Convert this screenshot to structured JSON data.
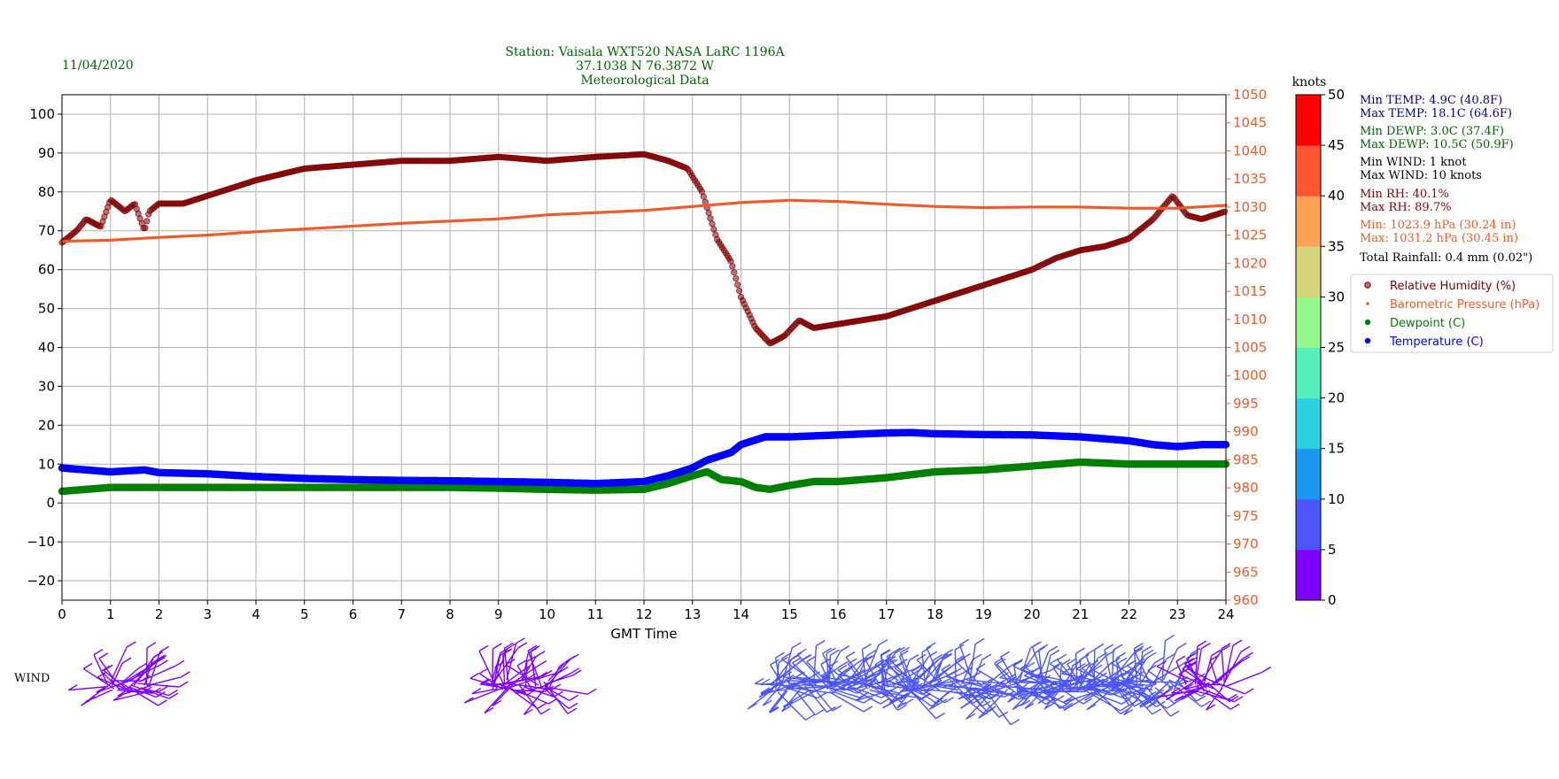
{
  "header": {
    "date": "11/04/2020",
    "title_lines": [
      "Station:  Vaisala WXT520  NASA LaRC 1196A",
      "37.1038 N 76.3872 W",
      "Meteorological Data"
    ]
  },
  "colors": {
    "title": "#006400",
    "humidity": "#800000",
    "pressure": "#f05a28",
    "dewpoint": "#008000",
    "temperature": "#0000ff",
    "grid": "#b0b0b0"
  },
  "stats": [
    {
      "text": "Min TEMP: 4.9C (40.8F)",
      "color": "#00008b"
    },
    {
      "text": "Max TEMP: 18.1C (64.6F)",
      "color": "#00008b"
    },
    {
      "text": "Min DEWP: 3.0C (37.4F)",
      "color": "#006400"
    },
    {
      "text": "Max DEWP: 10.5C (50.9F)",
      "color": "#006400"
    },
    {
      "text": "Min WIND: 1 knot",
      "color": "#000000"
    },
    {
      "text": "Max WIND: 10 knots",
      "color": "#000000"
    },
    {
      "text": "Min RH: 40.1%",
      "color": "#8b0000"
    },
    {
      "text": "Max RH: 89.7%",
      "color": "#8b0000"
    },
    {
      "text": "Min: 1023.9 hPa (30.24 in)",
      "color": "#f05a28"
    },
    {
      "text": "Max: 1031.2 hPa (30.45 in)",
      "color": "#f05a28"
    },
    {
      "text": "Total Rainfall: 0.4 mm (0.02\")",
      "color": "#000000"
    }
  ],
  "wind_label": "WIND",
  "colorbar": {
    "label": "knots",
    "ticks": [
      0,
      5,
      10,
      15,
      20,
      25,
      30,
      35,
      40,
      45,
      50
    ],
    "colors": [
      "#8000ff",
      "#4b55fa",
      "#1996f0",
      "#2ad1de",
      "#55f0be",
      "#95fa8e",
      "#d4d47a",
      "#ffa256",
      "#ff5530",
      "#ff0000"
    ]
  },
  "chart_data": {
    "type": "scatter",
    "xlabel": "GMT Time",
    "xlim": [
      0,
      24
    ],
    "xticks": [
      0,
      1,
      2,
      3,
      4,
      5,
      6,
      7,
      8,
      9,
      10,
      11,
      12,
      13,
      14,
      15,
      16,
      17,
      18,
      19,
      20,
      21,
      22,
      23,
      24
    ],
    "y_left": {
      "lim": [
        -25,
        105
      ],
      "ticks": [
        -20,
        -10,
        0,
        10,
        20,
        30,
        40,
        50,
        60,
        70,
        80,
        90,
        100
      ]
    },
    "y_right": {
      "lim": [
        960,
        1050
      ],
      "ticks": [
        960,
        965,
        970,
        975,
        980,
        985,
        990,
        995,
        1000,
        1005,
        1010,
        1015,
        1020,
        1025,
        1030,
        1035,
        1040,
        1045,
        1050
      ]
    },
    "legend_position": "right",
    "series": [
      {
        "name": "Relative Humidity (%)",
        "axis": "left",
        "x": [
          0,
          0.3,
          0.5,
          0.8,
          1,
          1.3,
          1.5,
          1.7,
          1.8,
          2,
          2.5,
          3,
          4,
          5,
          6,
          7,
          8,
          9,
          10,
          11,
          12,
          12.5,
          12.9,
          13.2,
          13.5,
          13.8,
          14,
          14.3,
          14.6,
          14.9,
          15.2,
          15.5,
          16,
          16.5,
          17,
          17.5,
          18,
          18.5,
          19,
          19.5,
          20,
          20.5,
          21,
          21.5,
          22,
          22.5,
          22.9,
          23.2,
          23.5,
          24
        ],
        "y": [
          67,
          70,
          73,
          71,
          78,
          75,
          77,
          70,
          75,
          77,
          77,
          79,
          83,
          86,
          87,
          88,
          88,
          89,
          88,
          89,
          89.7,
          88,
          86,
          80,
          68,
          62,
          53,
          45,
          41,
          43,
          47,
          45,
          46,
          47,
          48,
          50,
          52,
          54,
          56,
          58,
          60,
          63,
          65,
          66,
          68,
          73,
          79,
          74,
          73,
          75
        ]
      },
      {
        "name": "Barometric Pressure (hPa)",
        "axis": "right",
        "x": [
          0,
          1,
          2,
          3,
          4,
          5,
          6,
          7,
          8,
          9,
          10,
          11,
          12,
          13,
          14,
          15,
          16,
          17,
          18,
          19,
          20,
          21,
          22,
          23,
          24
        ],
        "y": [
          1023.9,
          1024.1,
          1024.6,
          1025,
          1025.6,
          1026.1,
          1026.6,
          1027.1,
          1027.5,
          1027.9,
          1028.6,
          1029,
          1029.4,
          1030.1,
          1030.8,
          1031.2,
          1031,
          1030.5,
          1030.1,
          1029.9,
          1030,
          1030,
          1029.8,
          1029.8,
          1030.3
        ]
      },
      {
        "name": "Dewpoint (C)",
        "axis": "left",
        "x": [
          0,
          1,
          2,
          3,
          4,
          5,
          6,
          7,
          8,
          9,
          10,
          11,
          12,
          12.5,
          13,
          13.3,
          13.6,
          14,
          14.3,
          14.6,
          15,
          15.5,
          16,
          17,
          18,
          19,
          20,
          21,
          22,
          23,
          24
        ],
        "y": [
          3,
          4,
          4,
          4,
          4,
          4,
          4,
          4,
          4,
          3.8,
          3.5,
          3.3,
          3.5,
          5,
          7,
          8,
          6,
          5.5,
          4,
          3.5,
          4.5,
          5.5,
          5.5,
          6.5,
          8,
          8.5,
          9.5,
          10.5,
          10,
          10,
          10
        ]
      },
      {
        "name": "Temperature (C)",
        "axis": "left",
        "x": [
          0,
          1,
          1.7,
          2,
          3,
          4,
          5,
          6,
          7,
          8,
          9,
          10,
          11,
          12,
          12.5,
          13,
          13.3,
          13.8,
          14,
          14.5,
          15,
          16,
          17,
          17.5,
          18,
          19,
          20,
          21,
          22,
          22.5,
          23,
          23.5,
          24
        ],
        "y": [
          9,
          8,
          8.5,
          7.8,
          7.5,
          6.8,
          6.3,
          6,
          5.8,
          5.7,
          5.5,
          5.3,
          5,
          5.5,
          7,
          9,
          11,
          13,
          15,
          17,
          17,
          17.5,
          18,
          18.1,
          17.8,
          17.6,
          17.5,
          17,
          16,
          15,
          14.5,
          15,
          15
        ]
      }
    ]
  },
  "wind_data": {
    "segments": [
      {
        "x0": 0.93,
        "x1": 1.85,
        "speed": 2
      },
      {
        "x0": 8.8,
        "x1": 10.1,
        "speed": 2
      },
      {
        "x0": 14.6,
        "x1": 23.0,
        "speed": 8
      },
      {
        "x0": 23.1,
        "x1": 24.0,
        "speed": 3
      }
    ]
  }
}
